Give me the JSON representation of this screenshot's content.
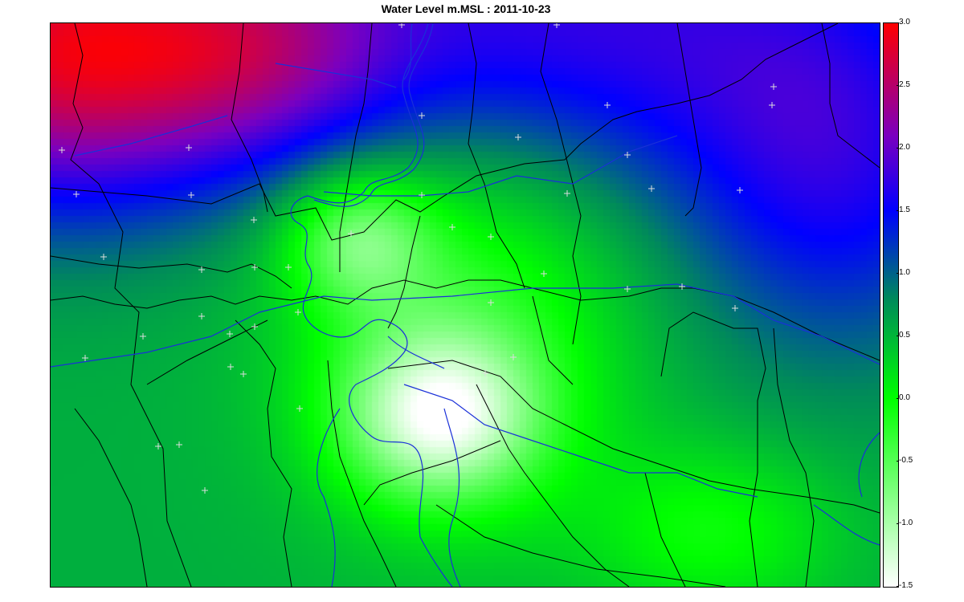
{
  "title": "Water Level m.MSL : 2011-10-23",
  "legend": {
    "min": -1.5,
    "max": 3.0,
    "ticks": [
      "3.0",
      "2.5",
      "2.0",
      "1.5",
      "1.0",
      "0.5",
      "0.0",
      "-0.5",
      "-1.0",
      "-1.5"
    ],
    "colors": {
      "max_red": "#ff0000",
      "high_purple": "#7a00c0",
      "mid_blue": "#0000ff",
      "teal": "#008a5a",
      "green": "#00ff00",
      "min_white": "#ffffff"
    }
  },
  "layers": [
    "interpolated water level surface",
    "district boundaries",
    "rivers and canals",
    "gauge stations"
  ],
  "stations_marker": "+"
}
